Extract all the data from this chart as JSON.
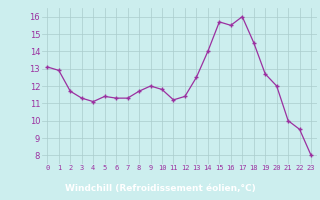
{
  "x": [
    0,
    1,
    2,
    3,
    4,
    5,
    6,
    7,
    8,
    9,
    10,
    11,
    12,
    13,
    14,
    15,
    16,
    17,
    18,
    19,
    20,
    21,
    22,
    23
  ],
  "y": [
    13.1,
    12.9,
    11.7,
    11.3,
    11.1,
    11.4,
    11.3,
    11.3,
    11.7,
    12.0,
    11.8,
    11.2,
    11.4,
    12.5,
    14.0,
    15.7,
    15.5,
    16.0,
    14.5,
    12.7,
    12.0,
    10.0,
    9.5,
    8.0
  ],
  "line_color": "#9b30a0",
  "marker_color": "#9b30a0",
  "bg_color": "#cceeee",
  "grid_color": "#aacccc",
  "xlabel": "Windchill (Refroidissement éolien,°C)",
  "xlabel_bg": "#883399",
  "xlabel_color": "#ffffff",
  "ylabel_ticks": [
    8,
    9,
    10,
    11,
    12,
    13,
    14,
    15,
    16
  ],
  "ylim": [
    7.5,
    16.5
  ],
  "xlim": [
    -0.5,
    23.5
  ],
  "xticks": [
    0,
    1,
    2,
    3,
    4,
    5,
    6,
    7,
    8,
    9,
    10,
    11,
    12,
    13,
    14,
    15,
    16,
    17,
    18,
    19,
    20,
    21,
    22,
    23
  ]
}
